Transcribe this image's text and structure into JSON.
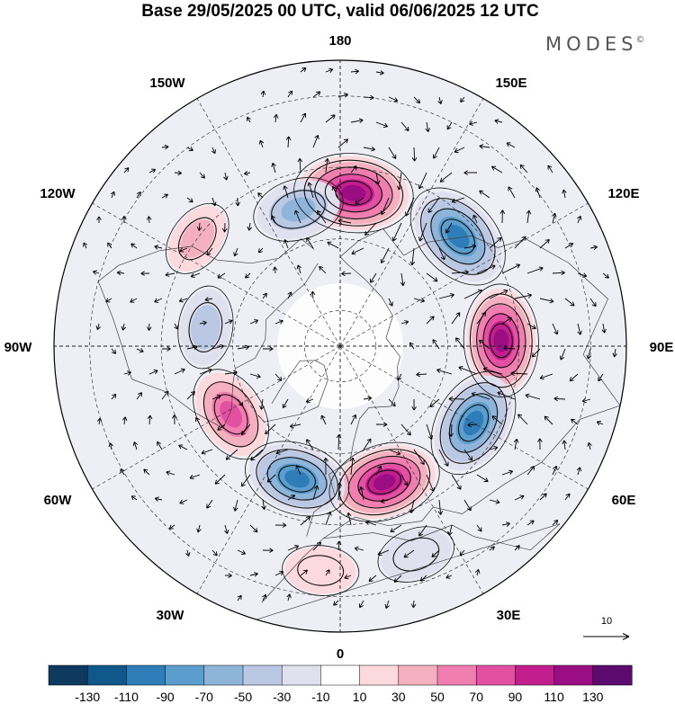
{
  "title": "Base 29/05/2025 00 UTC, valid 06/06/2025 12 UTC",
  "brand": "MODES",
  "brand_mark": "©",
  "longitude_labels": {
    "n180": "180",
    "e150": "150E",
    "e120": "120E",
    "e90": "90E",
    "e60": "60E",
    "e30": "30E",
    "n0": "0",
    "w30": "30W",
    "w60": "60W",
    "w90": "90W",
    "w120": "120W",
    "w150": "150W"
  },
  "reference_vector": {
    "value": "10"
  },
  "colorbar": {
    "colors": [
      "#0d3a5e",
      "#10588c",
      "#2f7db8",
      "#5b9dcc",
      "#8eb4da",
      "#bac8e4",
      "#e0e0ef",
      "#ffffff",
      "#fbd9dc",
      "#f5b0c0",
      "#f07fb0",
      "#e34fa1",
      "#c41e8e",
      "#9b0e83",
      "#5b0c6e"
    ],
    "tick_labels": [
      "-130",
      "-110",
      "-90",
      "-70",
      "-50",
      "-30",
      "-10",
      "10",
      "30",
      "50",
      "70",
      "90",
      "110",
      "130"
    ]
  },
  "anomaly_centers": [
    {
      "name": "pos-1",
      "lon": 175,
      "lat": 47,
      "value": 125
    },
    {
      "name": "neg-1",
      "lon": -163,
      "lat": 50,
      "value": -60
    },
    {
      "name": "neg-2",
      "lon": 133,
      "lat": 45,
      "value": -110
    },
    {
      "name": "pos-2",
      "lon": 92,
      "lat": 45,
      "value": 110
    },
    {
      "name": "neg-3",
      "lon": 60,
      "lat": 47,
      "value": -105
    },
    {
      "name": "pos-3",
      "lon": 18,
      "lat": 50,
      "value": 110
    },
    {
      "name": "neg-4",
      "lon": -18,
      "lat": 51,
      "value": -95
    },
    {
      "name": "pos-4",
      "lon": -58,
      "lat": 54,
      "value": 75
    },
    {
      "name": "neg-5",
      "lon": -98,
      "lat": 52,
      "value": -40
    },
    {
      "name": "pos-5",
      "lon": -127,
      "lat": 40,
      "value": 30
    },
    {
      "name": "pos-6",
      "lon": -5,
      "lat": 27,
      "value": 25
    },
    {
      "name": "neg-6",
      "lon": 20,
      "lat": 28,
      "value": -30
    }
  ]
}
